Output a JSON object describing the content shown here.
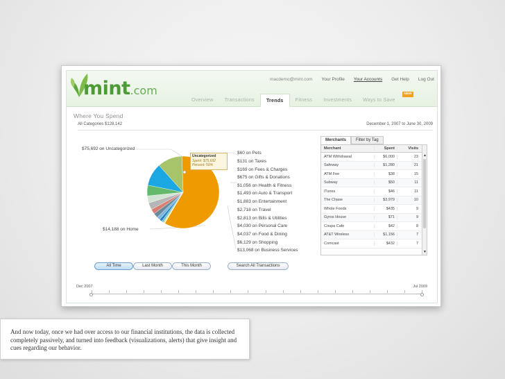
{
  "header": {
    "brand_word": "mint",
    "brand_suffix": ".com",
    "top_links": [
      "macdemo@mint.com",
      "Your Profile",
      "Your Accounts",
      "Get Help",
      "Log Out"
    ],
    "tabs": [
      "Overview",
      "Transactions",
      "Trends",
      "Fitness",
      "Investments",
      "Ways to Save"
    ],
    "selected_tab": "Trends",
    "new_badge": "NEW"
  },
  "section": {
    "title": "Where You Spend",
    "all_categories": "All Categories $128,142",
    "date_range": "December 1, 2007 to June 30, 2009"
  },
  "spending": [
    "$75,692 on Uncategorized",
    "$60 on Pets",
    "$131 on Taxes",
    "$169 on Fees & Charges",
    "$675 on Gifts & Donations",
    "$1,056 on Health & Fitness",
    "$1,493 on Auto & Transport",
    "$1,883 on Entertainment",
    "$2,718 on Travel",
    "$2,813 on Bills & Utilities",
    "$4,030 on Personal Care",
    "$4,037 on Food & Dining",
    "$6,129 on Shopping",
    "$13,068 on Business Services",
    "$14,188 on Home"
  ],
  "callout": {
    "title": "Uncategorized",
    "spent": "Spent: $75,692",
    "percent": "Percent: 59%"
  },
  "pie_slices": [
    {
      "name": "Uncategorized",
      "value": 75692,
      "color": "#ee9a00"
    },
    {
      "name": "Pets",
      "value": 60,
      "color": "#f7d3ff"
    },
    {
      "name": "Taxes",
      "value": 131,
      "color": "#fff066"
    },
    {
      "name": "Fees & Charges",
      "value": 169,
      "color": "#e9ee5c"
    },
    {
      "name": "Gifts & Donations",
      "value": 675,
      "color": "#c9e26c"
    },
    {
      "name": "Health & Fitness",
      "value": 1056,
      "color": "#63c2d8"
    },
    {
      "name": "Auto & Transport",
      "value": 1493,
      "color": "#2b7fc0"
    },
    {
      "name": "Entertainment",
      "value": 1883,
      "color": "#7ab8e0"
    },
    {
      "name": "Travel",
      "value": 2718,
      "color": "#6c8a99"
    },
    {
      "name": "Bills & Utilities",
      "value": 2813,
      "color": "#d97f71"
    },
    {
      "name": "Personal Care",
      "value": 4030,
      "color": "#b6b6b6"
    },
    {
      "name": "Food & Dining",
      "value": 4037,
      "color": "#d2e3d3"
    },
    {
      "name": "Shopping",
      "value": 6129,
      "color": "#64b86a"
    },
    {
      "name": "Business Services",
      "value": 13068,
      "color": "#1ba7e1"
    },
    {
      "name": "Home",
      "value": 14188,
      "color": "#a8c46a"
    }
  ],
  "merchants": {
    "tabs": [
      "Merchants",
      "Filter by Tag"
    ],
    "columns": [
      "Merchant",
      "Spent",
      "Visits"
    ],
    "rows": [
      [
        "ATM Withdrawal",
        "$6,000",
        "23"
      ],
      [
        "Safeway",
        "$1,280",
        "21"
      ],
      [
        "ATM Fee",
        "$38",
        "15"
      ],
      [
        "Subway",
        "$50",
        "11"
      ],
      [
        "iTunes",
        "$46",
        "11"
      ],
      [
        "The Chase",
        "$3,979",
        "10"
      ],
      [
        "Whole Foods",
        "$435",
        "9"
      ],
      [
        "Gyros House",
        "$71",
        "9"
      ],
      [
        "Coupa Cafe",
        "$42",
        "8"
      ],
      [
        "AT&T Wireless",
        "$1,156",
        "7"
      ],
      [
        "Comcast",
        "$432",
        "7"
      ]
    ]
  },
  "buttons": {
    "all_time": "All Time",
    "last_month": "Last Month",
    "this_month": "This Month",
    "search_all": "Search All Transactions"
  },
  "timeline": {
    "start": "Dec 2007",
    "end": "Jul 2009"
  },
  "caption": "And now today, once we had over access to our financial institutions, the data is collected completely passively, and turned into feedback (visualizations, alerts) that give insight and cues regarding our behavior."
}
